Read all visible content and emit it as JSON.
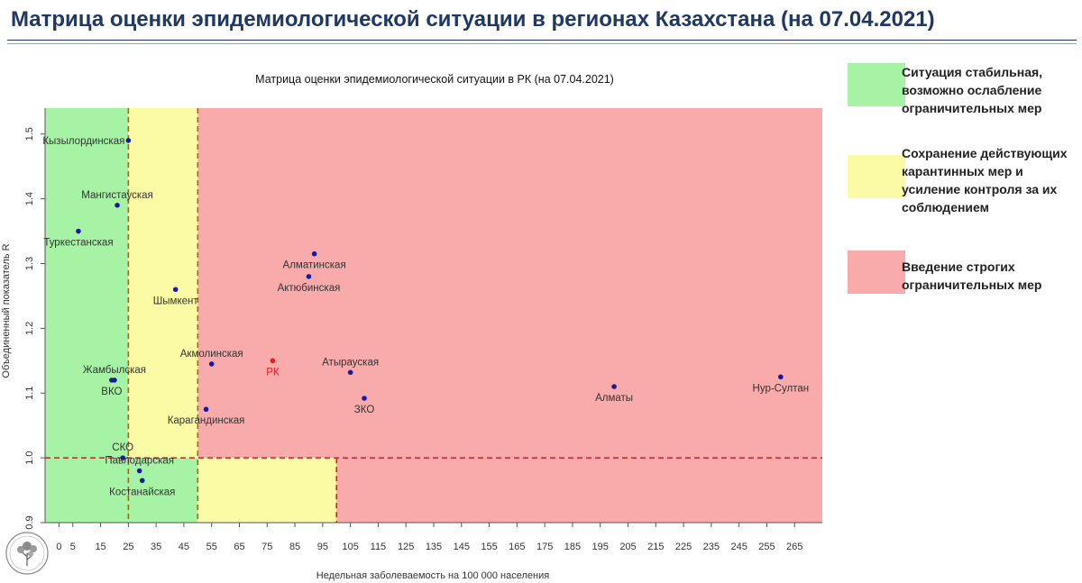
{
  "page_title": "Матрица оценки эпидемиологической ситуации в регионах Казахстана (на 07.04.2021)",
  "legend": [
    {
      "text": "Ситуация стабильная, возможно ослабление ограничительных мер",
      "lines": [
        "Ситуация стабильная,",
        "возможно ослабление",
        "ограничительных мер"
      ],
      "color": "#a6f3a6"
    },
    {
      "text": "Сохранение действующих карантинных мер и усиление контроля за их соблюдением",
      "lines": [
        "Сохранение действующих",
        "карантинных мер и",
        "усиление контроля за их",
        "соблюдением"
      ],
      "color": "#fbfba6"
    },
    {
      "text": "Введение строгих ограничительных мер",
      "lines": [
        "Введение строгих",
        "ограничительных мер"
      ],
      "color": "#f9aaaa"
    }
  ],
  "chart_data": {
    "type": "scatter",
    "title": "Матрица оценки эпидемиологической ситуации в РК (на 07.04.2021)",
    "xlabel": "Недельная заболеваемость на 100 000 населения",
    "ylabel": "Объединенный показатель R",
    "xlim": [
      -5,
      275
    ],
    "ylim": [
      0.9,
      1.54
    ],
    "x_ticks": [
      0,
      5,
      15,
      25,
      35,
      45,
      55,
      65,
      75,
      85,
      95,
      105,
      115,
      125,
      135,
      145,
      155,
      165,
      175,
      185,
      195,
      205,
      215,
      225,
      235,
      245,
      255,
      265
    ],
    "y_ticks": [
      0.9,
      1.0,
      1.1,
      1.2,
      1.3,
      1.4,
      1.5
    ],
    "y_tick_labels": [
      "0.9",
      "1.0",
      "1.1",
      "1.2",
      "1.3",
      "1.4",
      "1.5"
    ],
    "zones": [
      {
        "name": "green",
        "color": "#a6f3a6",
        "x": [
          -5,
          25
        ],
        "y": [
          1.0,
          1.54
        ]
      },
      {
        "name": "yellow",
        "color": "#fbfba6",
        "x": [
          25,
          50
        ],
        "y": [
          1.0,
          1.54
        ]
      },
      {
        "name": "red",
        "color": "#f9aaaa",
        "x": [
          50,
          275
        ],
        "y": [
          1.0,
          1.54
        ]
      },
      {
        "name": "green",
        "color": "#a6f3a6",
        "x": [
          -5,
          50
        ],
        "y": [
          0.9,
          1.0
        ]
      },
      {
        "name": "yellow",
        "color": "#fbfba6",
        "x": [
          50,
          100
        ],
        "y": [
          0.9,
          1.0
        ]
      },
      {
        "name": "red",
        "color": "#f9aaaa",
        "x": [
          100,
          275
        ],
        "y": [
          0.9,
          1.0
        ]
      }
    ],
    "threshold_lines": [
      {
        "orient": "v",
        "value": 25,
        "color": "#9a6b12"
      },
      {
        "orient": "v",
        "value": 50,
        "color": "#9a6b12"
      },
      {
        "orient": "v",
        "value": 100,
        "color": "#cc2222",
        "y": [
          0.9,
          1.0
        ]
      },
      {
        "orient": "h",
        "value": 1.0,
        "color": "#cc2222"
      }
    ],
    "points": [
      {
        "label": "Кызылординская",
        "x": 25,
        "y": 1.49,
        "color": "#1a1aa0",
        "label_pos": "left"
      },
      {
        "label": "Мангистауская",
        "x": 21,
        "y": 1.39,
        "color": "#1a1aa0",
        "label_pos": "top"
      },
      {
        "label": "Туркестанская",
        "x": 7,
        "y": 1.35,
        "color": "#1a1aa0",
        "label_pos": "bottom"
      },
      {
        "label": "Шымкент",
        "x": 42,
        "y": 1.26,
        "color": "#1a1aa0",
        "label_pos": "bottom"
      },
      {
        "label": "Жамбылская",
        "x": 20,
        "y": 1.12,
        "color": "#1a1aa0",
        "label_pos": "top"
      },
      {
        "label": "ВКО",
        "x": 19,
        "y": 1.12,
        "color": "#1a1aa0",
        "label_pos": "bottom"
      },
      {
        "label": "СКО",
        "x": 23,
        "y": 1.0,
        "color": "#1a1aa0",
        "label_pos": "top"
      },
      {
        "label": "Павлодарская",
        "x": 29,
        "y": 0.98,
        "color": "#1a1aa0",
        "label_pos": "top"
      },
      {
        "label": "Костанайская",
        "x": 30,
        "y": 0.965,
        "color": "#1a1aa0",
        "label_pos": "bottom"
      },
      {
        "label": "Алматинская",
        "x": 92,
        "y": 1.315,
        "color": "#1a1aa0",
        "label_pos": "bottom"
      },
      {
        "label": "Актюбинская",
        "x": 90,
        "y": 1.28,
        "color": "#1a1aa0",
        "label_pos": "bottom"
      },
      {
        "label": "Акмолинская",
        "x": 55,
        "y": 1.145,
        "color": "#1a1aa0",
        "label_pos": "top"
      },
      {
        "label": "РК",
        "x": 77,
        "y": 1.15,
        "color": "#e02020",
        "label_pos": "bottom"
      },
      {
        "label": "Атырауская",
        "x": 105,
        "y": 1.132,
        "color": "#1a1aa0",
        "label_pos": "top"
      },
      {
        "label": "ЗКО",
        "x": 110,
        "y": 1.092,
        "color": "#1a1aa0",
        "label_pos": "bottom"
      },
      {
        "label": "Карагандинская",
        "x": 53,
        "y": 1.075,
        "color": "#1a1aa0",
        "label_pos": "bottom"
      },
      {
        "label": "Алматы",
        "x": 200,
        "y": 1.11,
        "color": "#1a1aa0",
        "label_pos": "bottom"
      },
      {
        "label": "Нур-Султан",
        "x": 260,
        "y": 1.125,
        "color": "#1a1aa0",
        "label_pos": "bottom"
      }
    ],
    "grid": false
  }
}
